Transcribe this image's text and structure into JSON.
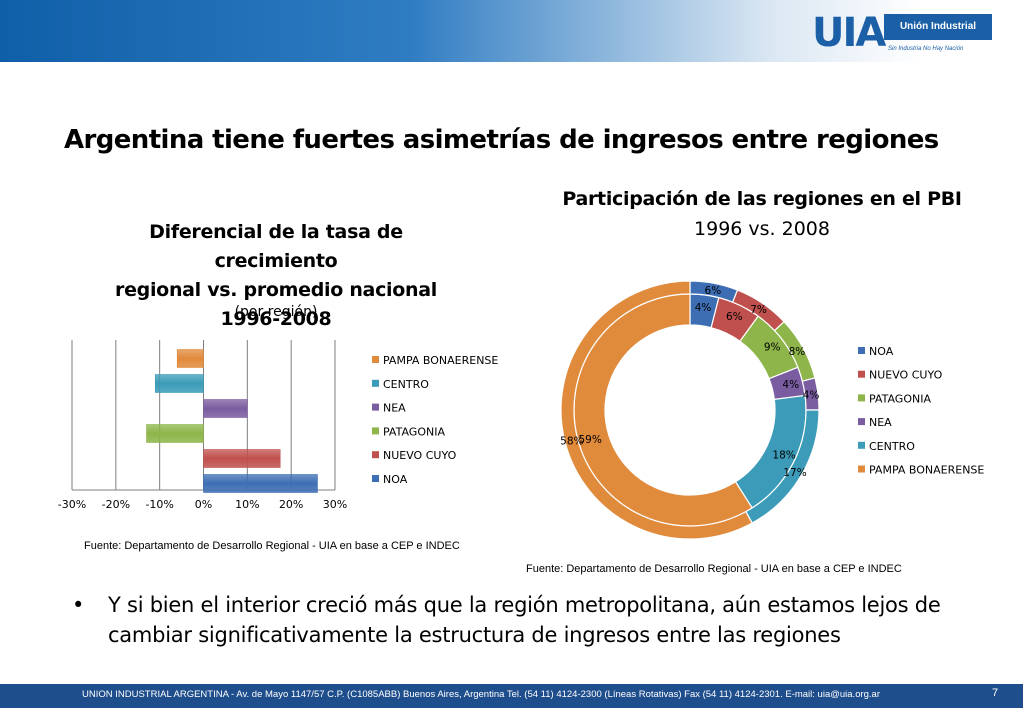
{
  "header": {
    "logo_mark": "UIA",
    "logo_name": "Unión Industrial Argentina",
    "logo_tagline": "Sin Industria No Hay Nación"
  },
  "slide_title": "Argentina tiene fuertes asimetrías de ingresos entre regiones",
  "left_chart": {
    "title_lines": [
      "Diferencial de la tasa de crecimiento",
      "regional vs. promedio nacional",
      "1996-2008"
    ],
    "subtitle": "(por región)",
    "source": "Fuente: Departamento de Desarrollo Regional - UIA en base a CEP e INDEC"
  },
  "right_chart": {
    "title": "Participación de las regiones en el PBI",
    "subtitle": "1996 vs. 2008",
    "source": "Fuente: Departamento de Desarrollo Regional - UIA en base a CEP e INDEC"
  },
  "bullet": "Y si bien el interior creció más que la región metropolitana,  aún estamos lejos de cambiar significativamente la estructura de ingresos entre las regiones",
  "footer": {
    "text": "UNION INDUSTRIAL ARGENTINA -  Av. de Mayo 1147/57  C.P. (C1085ABB)  Buenos Aires, Argentina Tel. (54 11) 4124-2300   (Líneas Rotativas)  Fax (54 11) 4124-2301.   E-mail: uia@uia.org.ar",
    "page_number": "7"
  },
  "chart_data": [
    {
      "type": "bar",
      "orientation": "horizontal",
      "categories": [
        "PAMPA BONAERENSE",
        "CENTRO",
        "NEA",
        "PATAGONIA",
        "NUEVO CUYO",
        "NOA"
      ],
      "values": [
        -6,
        -11,
        10,
        -13,
        17.5,
        26
      ],
      "colors": [
        "#e08a3c",
        "#3b9bb8",
        "#7a5ca0",
        "#8db54a",
        "#c0504d",
        "#3d6eb4"
      ],
      "xlim": [
        -30,
        30
      ],
      "xticks": [
        "-30%",
        "-20%",
        "-10%",
        "0%",
        "10%",
        "20%",
        "30%"
      ],
      "grid": true,
      "legend": "right",
      "legend_entries": [
        "PAMPA BONAERENSE",
        "CENTRO",
        "NEA",
        "PATAGONIA",
        "NUEVO CUYO",
        "NOA"
      ]
    },
    {
      "type": "pie",
      "style": "doughnut",
      "categories": [
        "NOA",
        "NUEVO CUYO",
        "PATAGONIA",
        "NEA",
        "CENTRO",
        "PAMPA BONAERENSE"
      ],
      "colors": [
        "#3d6eb4",
        "#c0504d",
        "#8db54a",
        "#7a5ca0",
        "#3b9bb8",
        "#e08a3c"
      ],
      "series": [
        {
          "ring": "inner",
          "values": [
            4,
            6,
            9,
            4,
            18,
            59
          ],
          "labels": [
            "4%",
            "6%",
            "9%",
            "4%",
            "18%",
            "59%"
          ]
        },
        {
          "ring": "outer",
          "values": [
            6,
            7,
            8,
            4,
            17,
            58
          ],
          "labels": [
            "6%",
            "7%",
            "8%",
            "4%",
            "17%",
            "58%"
          ]
        }
      ],
      "legend": "right",
      "legend_entries": [
        "NOA",
        "NUEVO CUYO",
        "PATAGONIA",
        "NEA",
        "CENTRO",
        "PAMPA BONAERENSE"
      ]
    }
  ]
}
